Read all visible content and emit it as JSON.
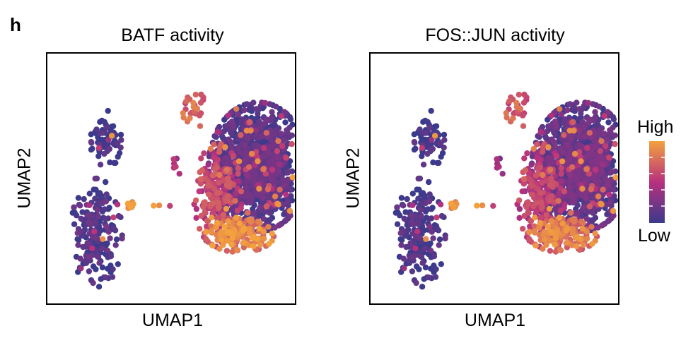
{
  "panel_label": "h",
  "colors": {
    "scale_low": "#3b3a8c",
    "scale_mid": "#b8307e",
    "scale_high": "#f3a23d",
    "frame": "#000000"
  },
  "legend": {
    "high_label": "High",
    "low_label": "Low"
  },
  "chart_data": [
    {
      "type": "scatter",
      "title": "BATF activity",
      "xlabel": "UMAP1",
      "ylabel": "UMAP2",
      "color_scale": [
        "Low",
        "High"
      ],
      "grid": false,
      "legend": "right",
      "clusters": [
        {
          "name": "",
          "center": [
            -6.2,
            4.8
          ],
          "spread": [
            0.45,
            0.8
          ],
          "n": 70,
          "activity": 0.0
        },
        {
          "name": "",
          "center": [
            -6.8,
            -0.8
          ],
          "spread": [
            0.75,
            1.5
          ],
          "n": 190,
          "activity": 0.05
        },
        {
          "name": "",
          "center": [
            -4.6,
            0.9
          ],
          "spread": [
            0.15,
            0.15
          ],
          "n": 10,
          "activity": 0.9
        },
        {
          "name": "",
          "center": [
            -1.6,
            3.2
          ],
          "spread": [
            0.15,
            0.3
          ],
          "n": 6,
          "activity": 0.4
        },
        {
          "name": "",
          "center": [
            -2.6,
            0.9
          ],
          "spread": [
            0.25,
            0.05
          ],
          "n": 3,
          "activity": 1.0
        },
        {
          "name": "",
          "center": [
            -0.5,
            6.6
          ],
          "spread": [
            0.35,
            0.5
          ],
          "n": 25,
          "activity": 0.75
        },
        {
          "name": "",
          "center": [
            3.6,
            3.2
          ],
          "spread": [
            1.45,
            1.75
          ],
          "n": 1300,
          "activity": 0.08
        },
        {
          "name": "",
          "center": [
            1.0,
            1.5
          ],
          "spread": [
            0.7,
            1.4
          ],
          "n": 220,
          "activity": 0.55
        },
        {
          "name": "",
          "center": [
            2.4,
            -0.9
          ],
          "spread": [
            1.0,
            0.45
          ],
          "n": 170,
          "activity": 0.85
        }
      ],
      "xlim": [
        -10,
        6
      ],
      "ylim": [
        -5,
        10
      ]
    },
    {
      "type": "scatter",
      "title": "FOS::JUN activity",
      "xlabel": "UMAP1",
      "ylabel": "UMAP2",
      "color_scale": [
        "Low",
        "High"
      ],
      "grid": false,
      "legend": "right",
      "clusters": [
        {
          "name": "",
          "center": [
            -6.2,
            4.8
          ],
          "spread": [
            0.45,
            0.8
          ],
          "n": 70,
          "activity": 0.0
        },
        {
          "name": "",
          "center": [
            -6.8,
            -0.8
          ],
          "spread": [
            0.75,
            1.5
          ],
          "n": 190,
          "activity": 0.03
        },
        {
          "name": "",
          "center": [
            -4.6,
            0.9
          ],
          "spread": [
            0.15,
            0.15
          ],
          "n": 10,
          "activity": 0.85
        },
        {
          "name": "",
          "center": [
            -1.6,
            3.2
          ],
          "spread": [
            0.15,
            0.3
          ],
          "n": 6,
          "activity": 0.3
        },
        {
          "name": "",
          "center": [
            -2.6,
            0.9
          ],
          "spread": [
            0.25,
            0.05
          ],
          "n": 3,
          "activity": 1.0
        },
        {
          "name": "",
          "center": [
            -0.5,
            6.6
          ],
          "spread": [
            0.35,
            0.5
          ],
          "n": 25,
          "activity": 0.7
        },
        {
          "name": "",
          "center": [
            3.6,
            3.2
          ],
          "spread": [
            1.45,
            1.75
          ],
          "n": 1300,
          "activity": 0.12
        },
        {
          "name": "",
          "center": [
            1.0,
            1.5
          ],
          "spread": [
            0.7,
            1.4
          ],
          "n": 220,
          "activity": 0.5
        },
        {
          "name": "",
          "center": [
            2.4,
            -0.9
          ],
          "spread": [
            1.0,
            0.45
          ],
          "n": 170,
          "activity": 0.8
        }
      ],
      "xlim": [
        -10,
        6
      ],
      "ylim": [
        -5,
        10
      ]
    }
  ]
}
